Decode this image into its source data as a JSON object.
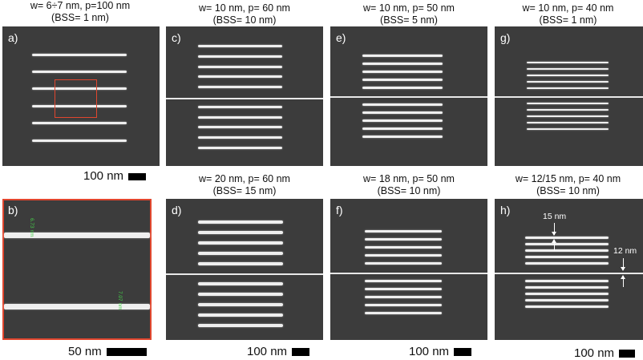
{
  "titles": {
    "a_line1": "w= 6÷7 nm, p=100 nm",
    "a_line2": "(BSS= 1 nm)",
    "c_line1": "w= 10 nm, p= 60 nm",
    "c_line2": "(BSS= 10 nm)",
    "e_line1": "w= 10 nm, p= 50 nm",
    "e_line2": "(BSS= 5 nm)",
    "g_line1": "w= 10 nm, p= 40 nm",
    "g_line2": "(BSS= 1 nm)",
    "d_line1": "w= 20 nm, p= 60 nm",
    "d_line2": "(BSS= 15 nm)",
    "f_line1": "w= 18 nm, p= 50 nm",
    "f_line2": "(BSS= 10 nm)",
    "h_line1": "w= 12/15 nm, p= 40 nm",
    "h_line2": "(BSS= 10 nm)"
  },
  "panel_labels": {
    "a": "a)",
    "b": "b)",
    "c": "c)",
    "d": "d)",
    "e": "e)",
    "f": "f)",
    "g": "g)",
    "h": "h)"
  },
  "scalebars": {
    "a": "100 nm",
    "b": "50 nm",
    "d": "100 nm",
    "f": "100 nm",
    "h": "100 nm"
  },
  "annotations": {
    "h_top": "15 nm",
    "h_right": "12 nm",
    "b_measure_1": "6.73 nm",
    "b_measure_2": "7.07 nm"
  },
  "colors": {
    "panel_background": "#3c3c3c",
    "line": "#efefef",
    "highlight_box": "#e0462e",
    "measurement_text": "#46d04a"
  }
}
